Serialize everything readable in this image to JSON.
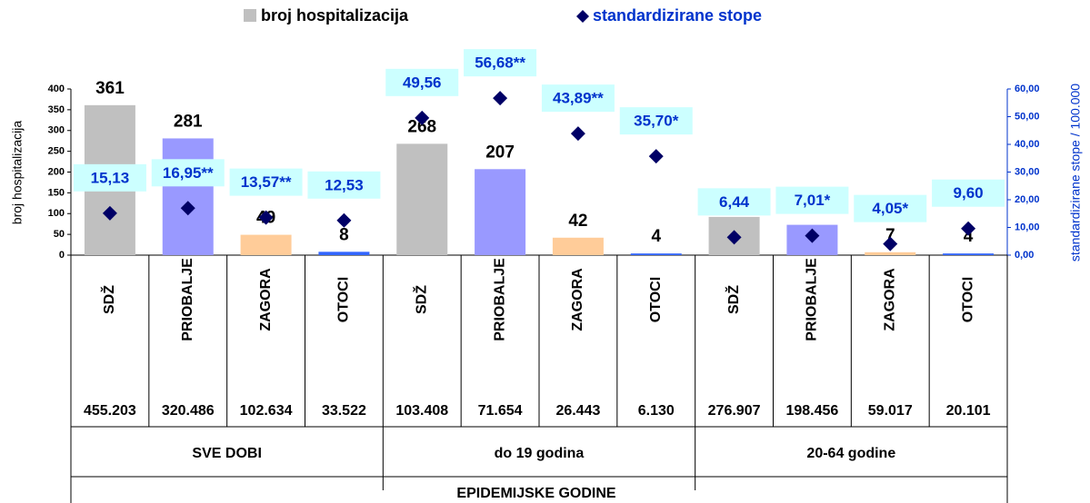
{
  "chart_data": {
    "type": "bar",
    "categories": [
      "SDŽ",
      "PRIOBALJE",
      "ZAGORA",
      "OTOCI",
      "SDŽ",
      "PRIOBALJE",
      "ZAGORA",
      "OTOCI",
      "SDŽ",
      "PRIOBALJE",
      "ZAGORA",
      "OTOCI"
    ],
    "populations": [
      "455.203",
      "320.486",
      "102.634",
      "33.522",
      "103.408",
      "71.654",
      "26.443",
      "6.130",
      "276.907",
      "198.456",
      "59.017",
      "20.101"
    ],
    "groups": [
      "SVE DOBI",
      "do 19 godina",
      "20-64 godine"
    ],
    "xlabel": "EPIDEMIJSKE GODINE",
    "ylabel": "broj hospitalizacija",
    "y2label": "standardizirane stope / 100.000",
    "series": [
      {
        "name": "broj hospitalizacija",
        "color": "#c0c0c0",
        "colors": [
          "#c0c0c0",
          "#9999ff",
          "#ffcc99",
          "#3366ff",
          "#c0c0c0",
          "#9999ff",
          "#ffcc99",
          "#3366ff",
          "#c0c0c0",
          "#9999ff",
          "#ffcc99",
          "#3366ff"
        ],
        "values": [
          361,
          281,
          49,
          8,
          268,
          207,
          42,
          4,
          92,
          73,
          7,
          4
        ]
      },
      {
        "name": "standardizirane stope",
        "color": "#000066",
        "axis": "y2",
        "values": [
          15.13,
          16.95,
          13.57,
          12.53,
          49.56,
          56.68,
          43.89,
          35.7,
          6.44,
          7.01,
          4.05,
          9.6
        ],
        "value_labels": [
          "15,13",
          "16,95**",
          "13,57**",
          "12,53",
          "49,56",
          "56,68**",
          "43,89**",
          "35,70*",
          "6,44",
          "7,01*",
          "4,05*",
          "9,60"
        ]
      }
    ],
    "ylim": [
      0,
      400
    ],
    "yticks": [
      0,
      50,
      100,
      150,
      200,
      250,
      300,
      350,
      400
    ],
    "y2lim": [
      0,
      60
    ],
    "y2ticks": [
      {
        "value": 0,
        "label": "0,00"
      },
      {
        "value": 10,
        "label": "10,00"
      },
      {
        "value": 20,
        "label": "20,00"
      },
      {
        "value": 30,
        "label": "30,00"
      },
      {
        "value": 40,
        "label": "40,00"
      },
      {
        "value": 50,
        "label": "50,00"
      },
      {
        "value": 60,
        "label": "60,00"
      }
    ]
  }
}
